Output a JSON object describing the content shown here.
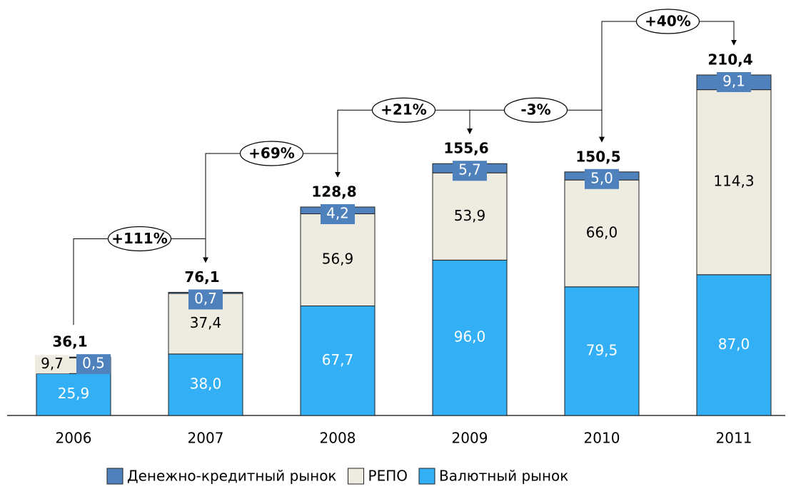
{
  "chart_data": {
    "type": "stacked-bar",
    "categories": [
      "2006",
      "2007",
      "2008",
      "2009",
      "2010",
      "2011"
    ],
    "series": [
      {
        "name": "Валютный рынок",
        "color": "#33b0f5",
        "values": [
          25.9,
          38.0,
          67.7,
          96.0,
          79.5,
          87.0
        ],
        "value_labels": [
          "25,9",
          "38,0",
          "67,7",
          "96,0",
          "79,5",
          "87,0"
        ]
      },
      {
        "name": "РЕПО",
        "color": "#eeece1",
        "values": [
          9.7,
          37.4,
          56.9,
          53.9,
          66.0,
          114.3
        ],
        "value_labels": [
          "9,7",
          "37,4",
          "56,9",
          "53,9",
          "66,0",
          "114,3"
        ]
      },
      {
        "name": "Денежно-кредитный рынок",
        "color": "#4f81bd",
        "values": [
          0.5,
          0.7,
          4.2,
          5.7,
          5.0,
          9.1
        ],
        "value_labels": [
          "0,5",
          "0,7",
          "4,2",
          "5,7",
          "5,0",
          "9,1"
        ]
      }
    ],
    "totals": {
      "values": [
        36.1,
        76.1,
        128.8,
        155.6,
        150.5,
        210.4
      ],
      "value_labels": [
        "36,1",
        "76,1",
        "128,8",
        "155,6",
        "150,5",
        "210,4"
      ]
    },
    "growth_labels": [
      "+111%",
      "+69%",
      "+21%",
      "-3%",
      "+40%"
    ]
  }
}
